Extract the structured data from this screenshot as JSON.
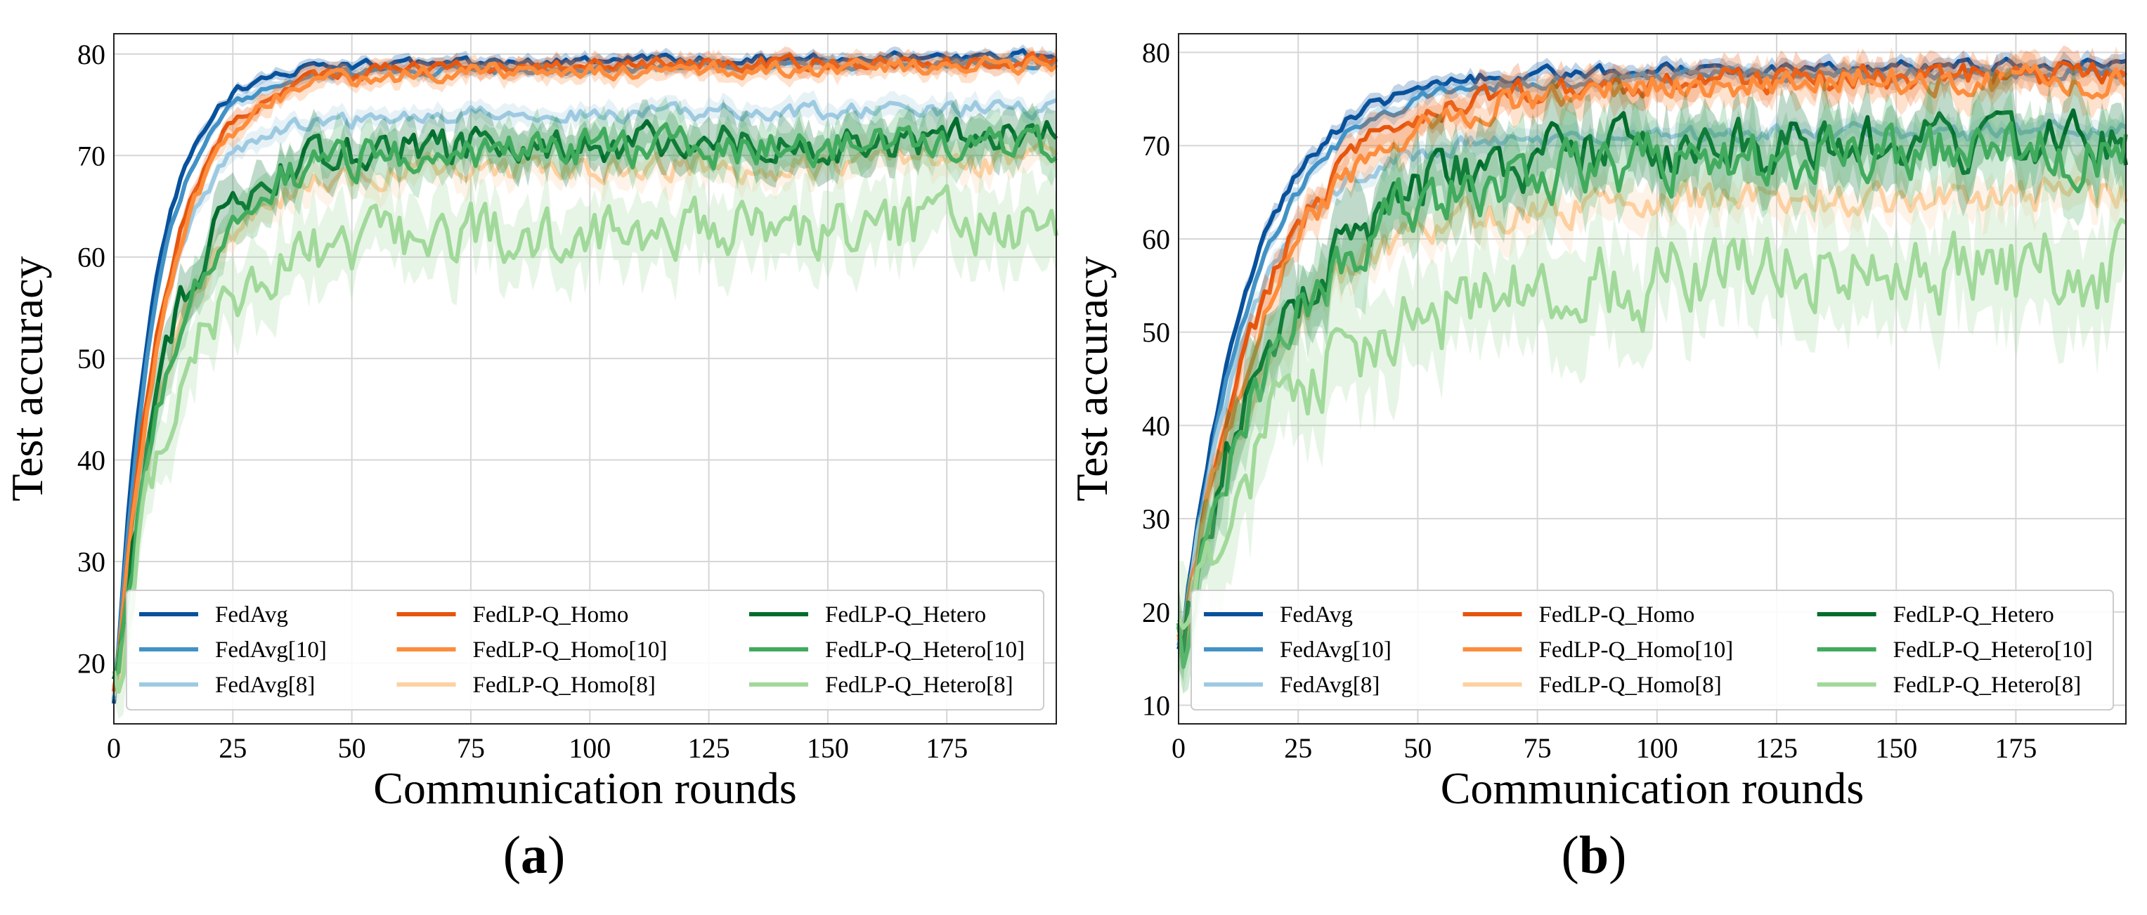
{
  "chart_data": [
    {
      "panel_label": "a",
      "type": "line",
      "xlabel": "Communication rounds",
      "ylabel": "Test accuracy",
      "xlim": [
        0,
        198
      ],
      "ylim": [
        14,
        82
      ],
      "xticks": [
        0,
        25,
        50,
        75,
        100,
        125,
        150,
        175
      ],
      "yticks": [
        20,
        30,
        40,
        50,
        60,
        70,
        80
      ],
      "grid": true,
      "legend_position": "bottom",
      "series": [
        {
          "name": "FedAvg",
          "color": "#08519c",
          "plateau": 78.7,
          "noise": 0.4,
          "k": 8
        },
        {
          "name": "FedAvg[10]",
          "color": "#4292c6",
          "plateau": 78.0,
          "noise": 0.4,
          "k": 8.5
        },
        {
          "name": "FedAvg[8]",
          "color": "#9ecae1",
          "plateau": 73.5,
          "noise": 0.7,
          "k": 9
        },
        {
          "name": "FedLP-Q_Homo",
          "color": "#e6550d",
          "plateau": 78.2,
          "noise": 0.6,
          "k": 10
        },
        {
          "name": "FedLP-Q_Homo[10]",
          "color": "#fd8d3c",
          "plateau": 77.8,
          "noise": 0.7,
          "k": 10.5
        },
        {
          "name": "FedLP-Q_Homo[8]",
          "color": "#fdd0a2",
          "plateau": 68.2,
          "noise": 1.2,
          "k": 11
        },
        {
          "name": "FedLP-Q_Hetero",
          "color": "#006d2c",
          "plateau": 70.5,
          "noise": 1.6,
          "k": 11
        },
        {
          "name": "FedLP-Q_Hetero[10]",
          "color": "#41ab5d",
          "plateau": 70.0,
          "noise": 1.6,
          "k": 11.5
        },
        {
          "name": "FedLP-Q_Hetero[8]",
          "color": "#a1d99b",
          "plateau": 61.8,
          "noise": 2.6,
          "k": 12
        }
      ]
    },
    {
      "panel_label": "b",
      "type": "line",
      "xlabel": "Communication rounds",
      "ylabel": "Test accuracy",
      "xlim": [
        0,
        198
      ],
      "ylim": [
        8,
        82
      ],
      "xticks": [
        0,
        25,
        50,
        75,
        100,
        125,
        150,
        175
      ],
      "yticks": [
        10,
        20,
        30,
        40,
        50,
        60,
        70,
        80
      ],
      "grid": true,
      "legend_position": "bottom",
      "series": [
        {
          "name": "FedAvg",
          "color": "#08519c",
          "plateau": 77.5,
          "noise": 0.6,
          "k": 14
        },
        {
          "name": "FedAvg[10]",
          "color": "#4292c6",
          "plateau": 76.8,
          "noise": 0.6,
          "k": 15
        },
        {
          "name": "FedAvg[8]",
          "color": "#9ecae1",
          "plateau": 70.5,
          "noise": 0.8,
          "k": 14
        },
        {
          "name": "FedLP-Q_Homo",
          "color": "#e6550d",
          "plateau": 76.5,
          "noise": 1.2,
          "k": 18
        },
        {
          "name": "FedLP-Q_Homo[10]",
          "color": "#fd8d3c",
          "plateau": 76.0,
          "noise": 1.4,
          "k": 19
        },
        {
          "name": "FedLP-Q_Homo[8]",
          "color": "#fdd0a2",
          "plateau": 63.5,
          "noise": 1.6,
          "k": 18
        },
        {
          "name": "FedLP-Q_Hetero",
          "color": "#006d2c",
          "plateau": 69.0,
          "noise": 2.8,
          "k": 20
        },
        {
          "name": "FedLP-Q_Hetero[10]",
          "color": "#41ab5d",
          "plateau": 68.0,
          "noise": 2.8,
          "k": 21
        },
        {
          "name": "FedLP-Q_Hetero[8]",
          "color": "#a1d99b",
          "plateau": 55.5,
          "noise": 4.0,
          "k": 22
        }
      ]
    }
  ],
  "panel_labels": [
    "(a)",
    "(b)"
  ]
}
